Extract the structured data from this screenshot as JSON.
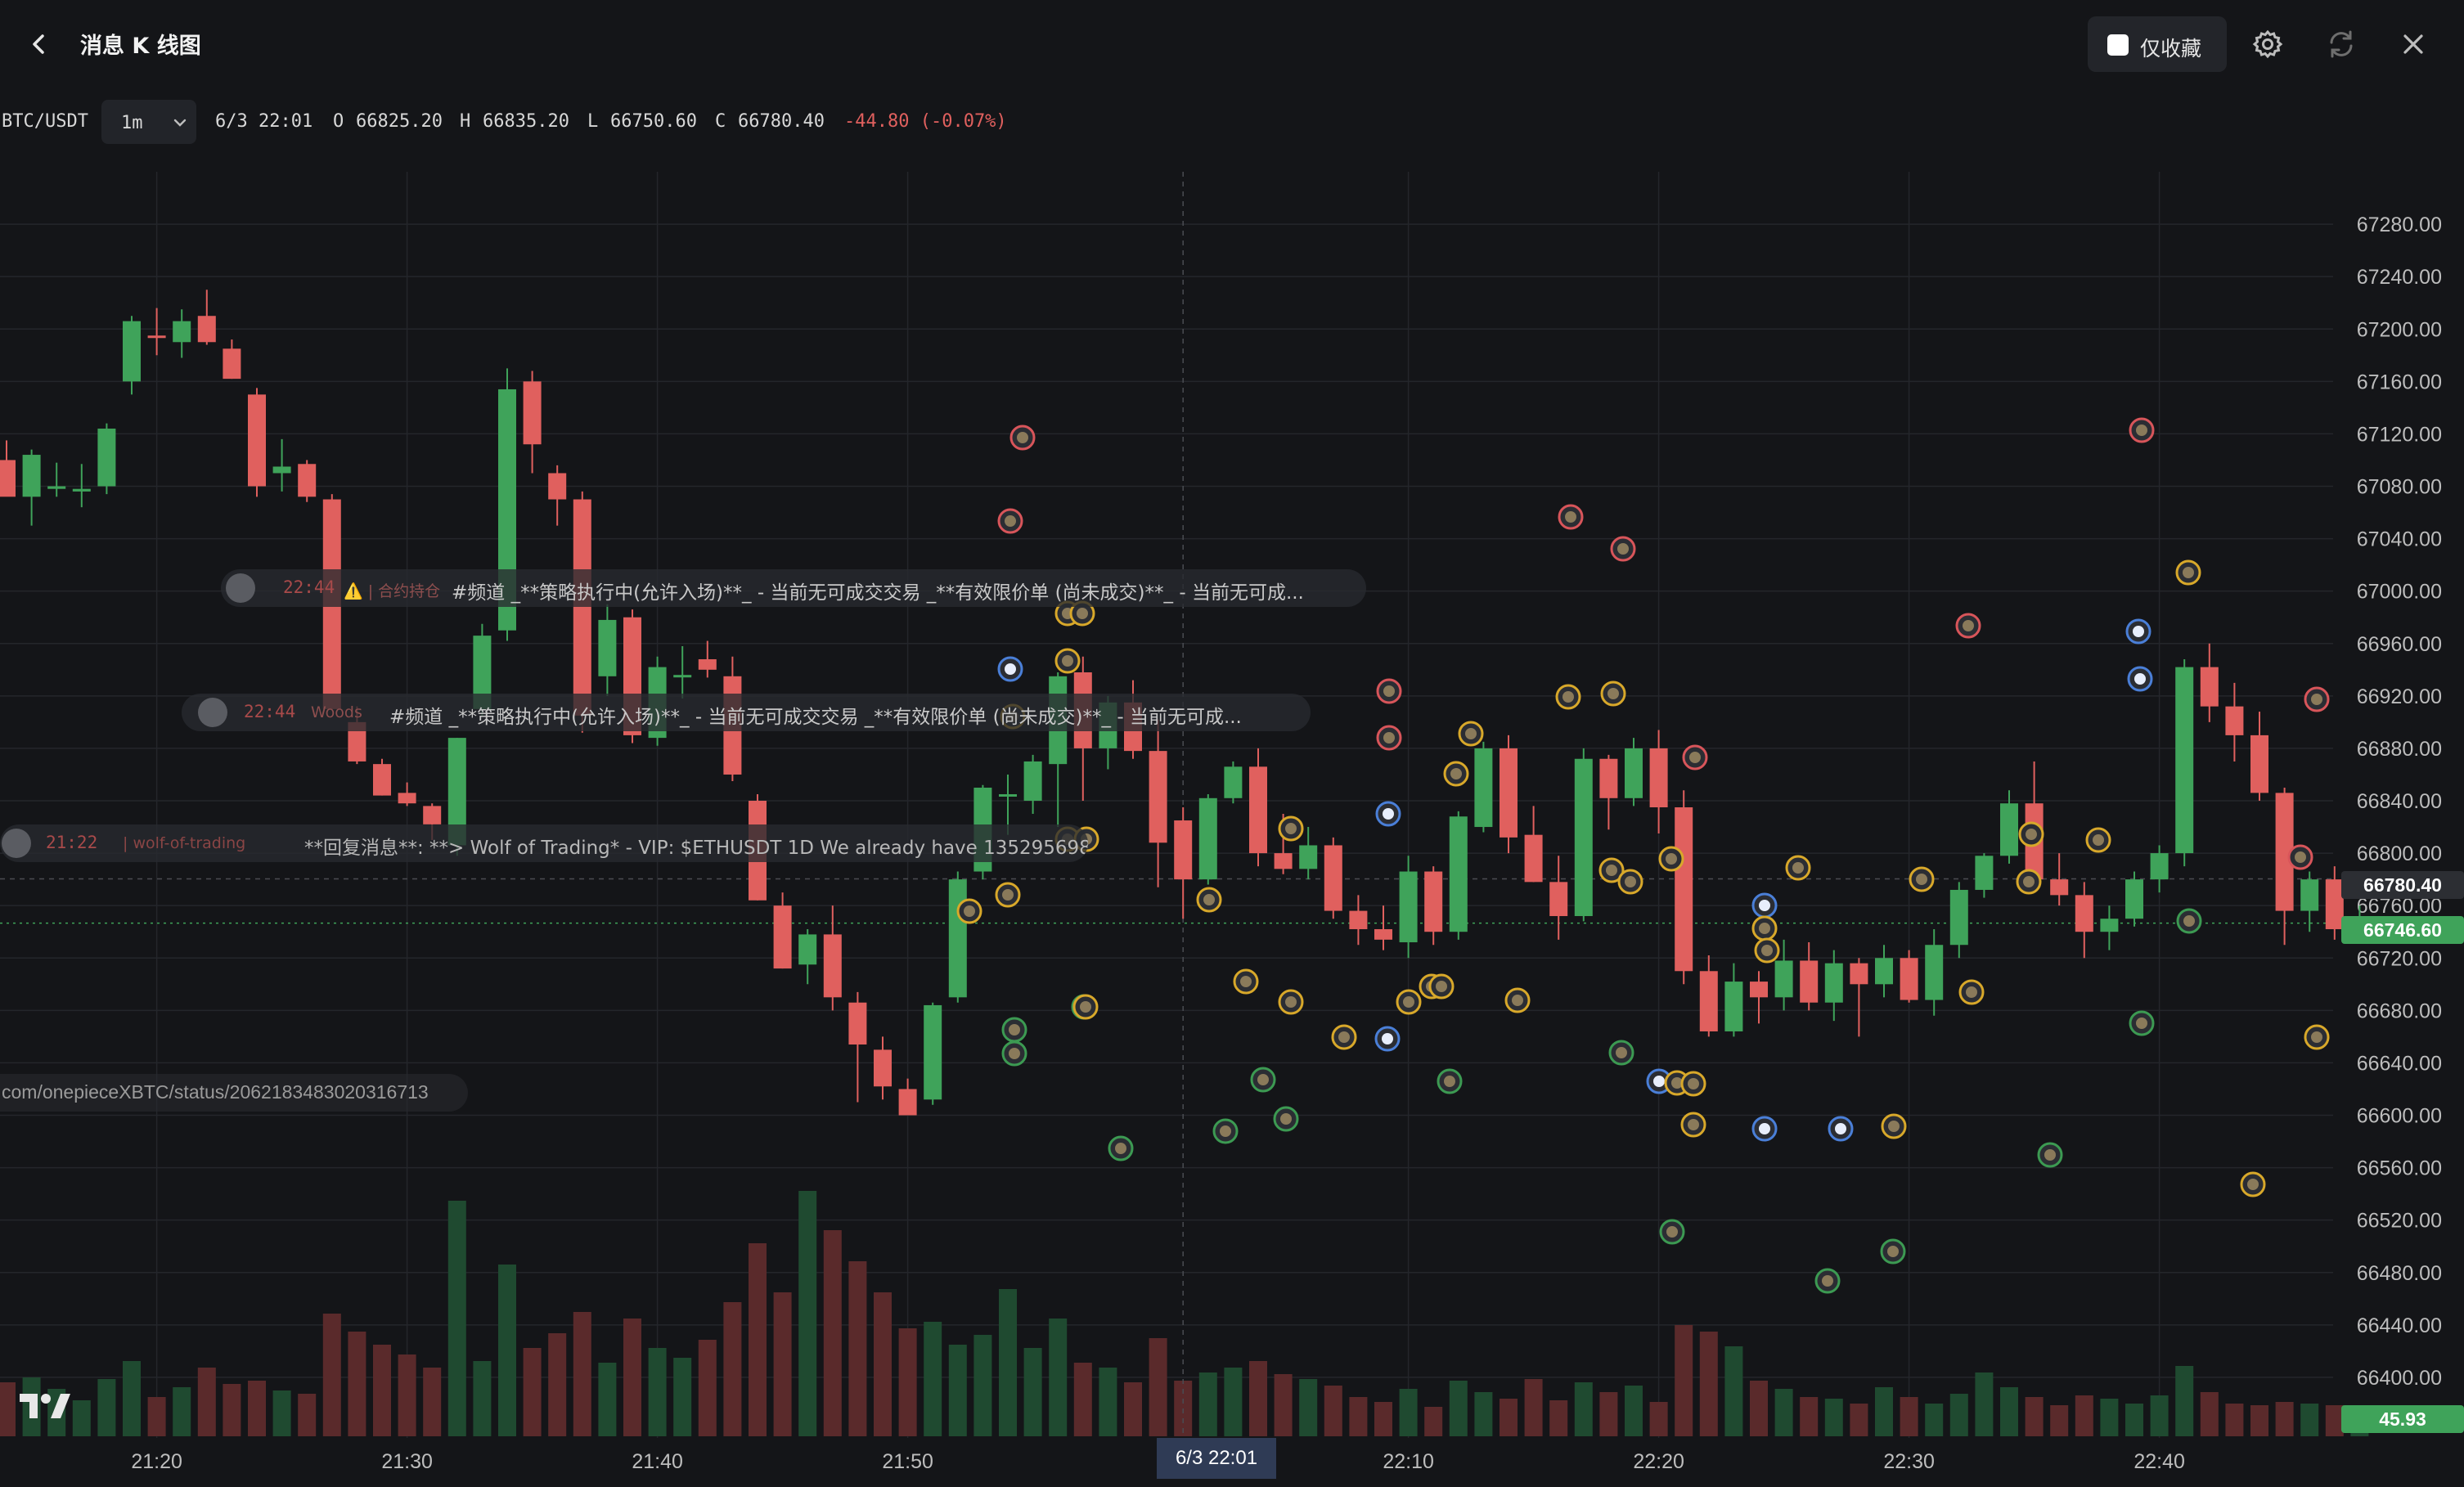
{
  "header": {
    "title": "消息 K 线图",
    "favorites_only_label": "仅收藏",
    "favorites_only_checked": false
  },
  "icons": {
    "back": "chevron-left-icon",
    "settings": "gear-icon",
    "refresh": "refresh-icon",
    "close": "close-icon",
    "logo": "tradingview-logo-icon"
  },
  "ohlc": {
    "symbol": "BTC/USDT",
    "interval": "1m",
    "datetime": "6/3 22:01",
    "open_label": "O",
    "open": "66825.20",
    "high_label": "H",
    "high": "66835.20",
    "low_label": "L",
    "low": "66750.60",
    "close_label": "C",
    "close": "66780.40",
    "change": "-44.80 (-0.07%)"
  },
  "messages": [
    {
      "time": "22:44",
      "author": "⚠️ | 合约持仓",
      "text": "#频道 _**策略执行中(允许入场)**_ - 当前无可成交交易 _**有效限价单 (尚未成交)**_ - 当前无可成..."
    },
    {
      "time": "22:44",
      "author": "Woods",
      "text": "#频道 _**策略执行中(允许入场)**_ - 当前无可成交交易 _**有效限价单 (尚未成交)**_ - 当前无可成..."
    },
    {
      "time": "21:22",
      "author": "| wolf-of-trading",
      "text": "**回复消息**: **> Wolf of Trading* - VIP: $ETHUSDT 1D We already have 1352956989/..."
    }
  ],
  "url_text": "com/onepieceXBTC/status/2062183483020316713",
  "price_tags": {
    "crosshair_price": "66780.40",
    "last_price": "66746.60",
    "volume": "45.93"
  },
  "time_highlight": "6/3 22:01",
  "colors": {
    "up": "#3fa35a",
    "down": "#e0605e",
    "up_volume": "#1f4a30",
    "down_volume": "#5a2a2b",
    "background": "#141518",
    "grid": "#24262b",
    "marker_yellow": "#d8a82a",
    "marker_red": "#d8555a",
    "marker_green": "#3c9a52",
    "marker_blue": "#4a7fd8"
  },
  "chart_data": {
    "type": "candlestick",
    "title": "",
    "xlabel": "",
    "ylabel": "",
    "y_ticks": [
      67280,
      67240,
      67200,
      67160,
      67120,
      67080,
      67040,
      67000,
      66960,
      66920,
      66880,
      66840,
      66800,
      66760,
      66720,
      66680,
      66640,
      66600,
      66560,
      66520,
      66480,
      66440,
      66400
    ],
    "y_tick_labels": [
      "67280.00",
      "67240.00",
      "67200.00",
      "67160.00",
      "67120.00",
      "67080.00",
      "67040.00",
      "67000.00",
      "66960.00",
      "66920.00",
      "66880.00",
      "66840.00",
      "66800.00",
      "66760.00",
      "66720.00",
      "66680.00",
      "66640.00",
      "66600.00",
      "66560.00",
      "66520.00",
      "66480.00",
      "66440.00",
      "66400.00"
    ],
    "x_labels": [
      "21:20",
      "21:30",
      "21:40",
      "21:50",
      "22:10",
      "22:20",
      "22:30",
      "22:40"
    ],
    "ylim": [
      66365,
      67320
    ],
    "candles": [
      [
        "21:14",
        67100,
        67115,
        67080,
        67072,
        66
      ],
      [
        "21:15",
        67072,
        67108,
        67050,
        67104,
        72
      ],
      [
        "21:16",
        67078,
        67098,
        67072,
        67080,
        58
      ],
      [
        "21:17",
        67076,
        67097,
        67064,
        67078,
        44
      ],
      [
        "21:18",
        67080,
        67128,
        67074,
        67124,
        70
      ],
      [
        "21:19",
        67160,
        67210,
        67150,
        67206,
        92
      ],
      [
        "21:20",
        67195,
        67216,
        67180,
        67194,
        48
      ],
      [
        "21:21",
        67190,
        67215,
        67178,
        67206,
        60
      ],
      [
        "21:22",
        67210,
        67230,
        67188,
        67190,
        84
      ],
      [
        "21:23",
        67185,
        67192,
        67162,
        67162,
        64
      ],
      [
        "21:24",
        67150,
        67155,
        67072,
        67080,
        68
      ],
      [
        "21:25",
        67090,
        67116,
        67076,
        67095,
        56
      ],
      [
        "21:26",
        67097,
        67100,
        67068,
        67072,
        52
      ],
      [
        "21:27",
        67070,
        67074,
        66910,
        66910,
        150
      ],
      [
        "21:28",
        66900,
        66912,
        66868,
        66870,
        128
      ],
      [
        "21:29",
        66868,
        66872,
        66844,
        66844,
        112
      ],
      [
        "21:30",
        66846,
        66854,
        66836,
        66838,
        100
      ],
      [
        "21:31",
        66836,
        66838,
        66810,
        66822,
        84
      ],
      [
        "21:32",
        66806,
        66888,
        66798,
        66888,
        288
      ],
      [
        "21:33",
        66910,
        66975,
        66904,
        66966,
        92
      ],
      [
        "21:34",
        66970,
        67170,
        66962,
        67154,
        210
      ],
      [
        "21:35",
        67160,
        67168,
        67090,
        67112,
        108
      ],
      [
        "21:36",
        67090,
        67096,
        67050,
        67070,
        126
      ],
      [
        "21:37",
        67070,
        67076,
        66892,
        66905,
        152
      ],
      [
        "21:38",
        66935,
        66990,
        66920,
        66978,
        90
      ],
      [
        "21:39",
        66980,
        66986,
        66884,
        66890,
        144
      ],
      [
        "21:40",
        66888,
        66950,
        66882,
        66942,
        108
      ],
      [
        "21:41",
        66936,
        66958,
        66918,
        66936,
        96
      ],
      [
        "21:42",
        66948,
        66962,
        66934,
        66940,
        118
      ],
      [
        "21:43",
        66935,
        66950,
        66855,
        66860,
        164
      ],
      [
        "21:44",
        66840,
        66845,
        66764,
        66764,
        236
      ],
      [
        "21:45",
        66760,
        66770,
        66712,
        66712,
        176
      ],
      [
        "21:46",
        66715,
        66742,
        66700,
        66738,
        300
      ],
      [
        "21:47",
        66738,
        66760,
        66680,
        66690,
        252
      ],
      [
        "21:48",
        66686,
        66694,
        66610,
        66654,
        214
      ],
      [
        "21:49",
        66650,
        66660,
        66612,
        66622,
        176
      ],
      [
        "21:50",
        66620,
        66628,
        66600,
        66600,
        132
      ],
      [
        "21:51",
        66612,
        66686,
        66608,
        66684,
        140
      ],
      [
        "21:52",
        66690,
        66786,
        66686,
        66780,
        112
      ],
      [
        "21:53",
        66786,
        66852,
        66780,
        66850,
        124
      ],
      [
        "21:54",
        66845,
        66860,
        66814,
        66845,
        180
      ],
      [
        "21:55",
        66840,
        66875,
        66830,
        66870,
        108
      ],
      [
        "21:56",
        66868,
        66938,
        66820,
        66935,
        144
      ],
      [
        "21:57",
        66938,
        66950,
        66840,
        66880,
        90
      ],
      [
        "21:58",
        66880,
        66920,
        66864,
        66915,
        84
      ],
      [
        "21:59",
        66915,
        66932,
        66872,
        66878,
        66
      ],
      [
        "22:00",
        66878,
        66902,
        66774,
        66808,
        120
      ],
      [
        "22:01",
        66825,
        66835,
        66750,
        66780,
        68
      ]
    ],
    "candles_continued": [
      [
        "22:02",
        66780,
        66845,
        66776,
        66842,
        78
      ],
      [
        "22:03",
        66842,
        66870,
        66838,
        66866,
        84
      ],
      [
        "22:04",
        66866,
        66880,
        66790,
        66800,
        92
      ],
      [
        "22:05",
        66800,
        66830,
        66784,
        66788,
        76
      ],
      [
        "22:06",
        66788,
        66820,
        66780,
        66806,
        70
      ],
      [
        "22:07",
        66806,
        66812,
        66750,
        66756,
        62
      ],
      [
        "22:08",
        66756,
        66768,
        66730,
        66742,
        48
      ],
      [
        "22:09",
        66742,
        66760,
        66726,
        66734,
        42
      ],
      [
        "22:10",
        66732,
        66798,
        66720,
        66786,
        58
      ],
      [
        "22:11",
        66786,
        66790,
        66730,
        66740,
        36
      ],
      [
        "22:12",
        66740,
        66832,
        66734,
        66828,
        68
      ],
      [
        "22:13",
        66820,
        66885,
        66816,
        66880,
        54
      ],
      [
        "22:14",
        66880,
        66890,
        66800,
        66812,
        46
      ],
      [
        "22:15",
        66814,
        66836,
        66778,
        66778,
        70
      ],
      [
        "22:16",
        66778,
        66798,
        66734,
        66752,
        44
      ],
      [
        "22:17",
        66752,
        66880,
        66748,
        66872,
        66
      ],
      [
        "22:18",
        66872,
        66875,
        66818,
        66842,
        54
      ],
      [
        "22:19",
        66842,
        66888,
        66836,
        66880,
        62
      ],
      [
        "22:20",
        66880,
        66894,
        66815,
        66835,
        42
      ],
      [
        "22:21",
        66835,
        66848,
        66700,
        66710,
        136
      ],
      [
        "22:22",
        66710,
        66722,
        66660,
        66664,
        128
      ],
      [
        "22:23",
        66664,
        66716,
        66660,
        66702,
        110
      ],
      [
        "22:24",
        66702,
        66710,
        66670,
        66690,
        68
      ],
      [
        "22:25",
        66690,
        66734,
        66680,
        66718,
        58
      ],
      [
        "22:26",
        66718,
        66732,
        66680,
        66686,
        48
      ],
      [
        "22:27",
        66686,
        66726,
        66672,
        66716,
        46
      ],
      [
        "22:28",
        66716,
        66720,
        66660,
        66700,
        40
      ],
      [
        "22:29",
        66700,
        66730,
        66690,
        66720,
        60
      ],
      [
        "22:30",
        66720,
        66726,
        66686,
        66688,
        48
      ],
      [
        "22:31",
        66688,
        66742,
        66676,
        66730,
        40
      ],
      [
        "22:32",
        66730,
        66778,
        66720,
        66772,
        52
      ],
      [
        "22:33",
        66772,
        66800,
        66766,
        66798,
        78
      ],
      [
        "22:34",
        66798,
        66848,
        66792,
        66838,
        60
      ],
      [
        "22:35",
        66838,
        66870,
        66770,
        66780,
        48
      ],
      [
        "22:36",
        66780,
        66800,
        66760,
        66768,
        38
      ],
      [
        "22:37",
        66768,
        66778,
        66720,
        66740,
        50
      ],
      [
        "22:38",
        66740,
        66760,
        66726,
        66750,
        46
      ],
      [
        "22:39",
        66750,
        66786,
        66744,
        66780,
        40
      ],
      [
        "22:40",
        66780,
        66806,
        66770,
        66800,
        50
      ],
      [
        "22:41",
        66800,
        66948,
        66790,
        66942,
        86
      ],
      [
        "22:42",
        66942,
        66960,
        66900,
        66912,
        54
      ],
      [
        "22:43",
        66912,
        66930,
        66870,
        66890,
        40
      ],
      [
        "22:44",
        66890,
        66908,
        66840,
        66846,
        38
      ],
      [
        "22:45",
        66846,
        66850,
        66730,
        66756,
        42
      ],
      [
        "22:46",
        66756,
        66786,
        66740,
        66780,
        40
      ],
      [
        "22:47",
        66780,
        66790,
        66734,
        66742,
        38
      ],
      [
        "22:48",
        66742,
        66760,
        66740,
        66746,
        28
      ]
    ]
  }
}
